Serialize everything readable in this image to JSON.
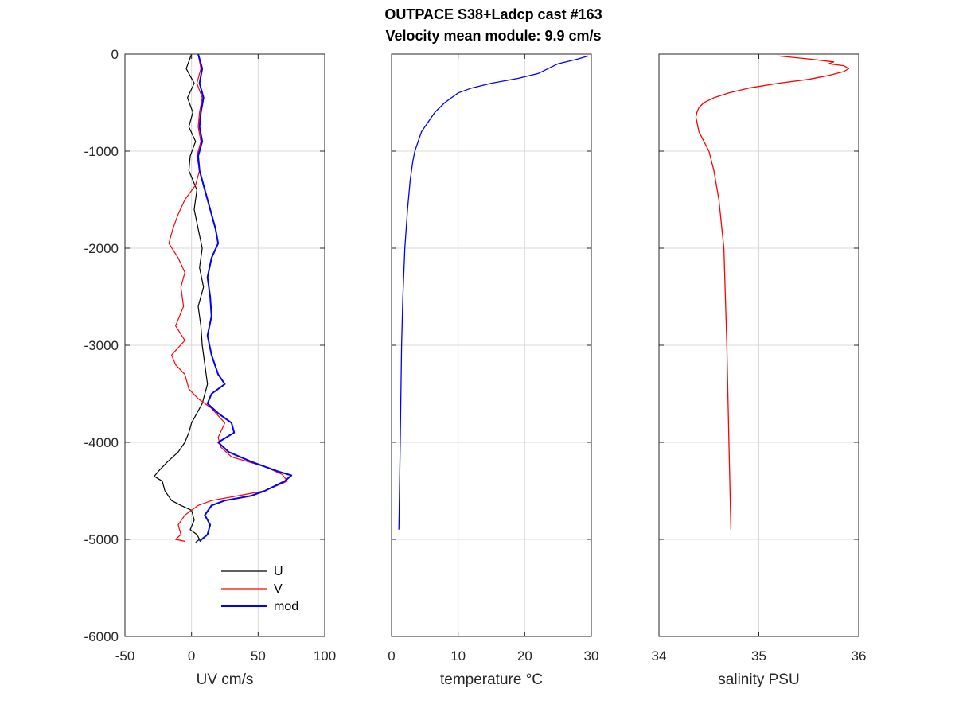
{
  "title_line1": "OUTPACE S38+Ladcp cast #163",
  "title_line2": "Velocity mean module:  9.9 cm/s",
  "colors": {
    "U": "#000000",
    "V": "#ff0000",
    "mod": "#0000ff",
    "temperature": "#0000ff",
    "salinity": "#ff0000",
    "grid": "#d9d9d9",
    "axis": "#262626"
  },
  "chart_data": [
    {
      "type": "line",
      "xlabel": "UV cm/s",
      "ylabel": "",
      "xlim": [
        -50,
        100
      ],
      "ylim": [
        -6000,
        0
      ],
      "xticks": [
        -50,
        0,
        50,
        100
      ],
      "yticks": [
        -6000,
        -5000,
        -4000,
        -3000,
        -2000,
        -1000,
        0
      ],
      "grid": true,
      "legend": {
        "location": "bottom-right",
        "entries": [
          "U",
          "V",
          "mod"
        ]
      },
      "series": [
        {
          "name": "U",
          "depth": [
            0,
            -150,
            -300,
            -450,
            -600,
            -750,
            -900,
            -1050,
            -1200,
            -1400,
            -1600,
            -1800,
            -2000,
            -2200,
            -2400,
            -2600,
            -2800,
            -3000,
            -3200,
            -3400,
            -3600,
            -3800,
            -3900,
            -4000,
            -4100,
            -4200,
            -4300,
            -4350,
            -4400,
            -4500,
            -4600,
            -4650,
            -4700,
            -4800,
            -4900,
            -4950,
            -5000,
            -5030
          ],
          "values": [
            0,
            -4,
            2,
            -3,
            1,
            -2,
            3,
            -1,
            -2,
            4,
            2,
            5,
            8,
            6,
            9,
            5,
            7,
            8,
            10,
            12,
            8,
            0,
            -2,
            -5,
            -10,
            -18,
            -25,
            -28,
            -22,
            -20,
            -15,
            -8,
            0,
            2,
            -1,
            4,
            6,
            3
          ]
        },
        {
          "name": "V",
          "depth": [
            0,
            -150,
            -300,
            -450,
            -600,
            -750,
            -900,
            -1050,
            -1200,
            -1350,
            -1500,
            -1650,
            -1800,
            -1950,
            -2100,
            -2250,
            -2400,
            -2600,
            -2800,
            -2950,
            -3100,
            -3200,
            -3300,
            -3450,
            -3550,
            -3650,
            -3800,
            -3950,
            -4050,
            -4150,
            -4250,
            -4330,
            -4400,
            -4500,
            -4550,
            -4600,
            -4650,
            -4750,
            -4850,
            -4950,
            -5000,
            -5020
          ],
          "values": [
            5,
            7,
            4,
            8,
            6,
            5,
            7,
            4,
            6,
            3,
            -5,
            -10,
            -14,
            -17,
            -10,
            -5,
            -8,
            -6,
            -12,
            -5,
            -15,
            -12,
            -5,
            -2,
            5,
            15,
            25,
            20,
            22,
            30,
            55,
            68,
            72,
            55,
            35,
            15,
            5,
            -5,
            -10,
            -8,
            -12,
            -5
          ]
        },
        {
          "name": "mod",
          "depth": [
            0,
            -150,
            -300,
            -450,
            -600,
            -750,
            -900,
            -1050,
            -1200,
            -1400,
            -1600,
            -1800,
            -1950,
            -2100,
            -2300,
            -2500,
            -2700,
            -2900,
            -3100,
            -3300,
            -3400,
            -3500,
            -3600,
            -3700,
            -3800,
            -3900,
            -4000,
            -4100,
            -4200,
            -4300,
            -4340,
            -4400,
            -4500,
            -4550,
            -4600,
            -4650,
            -4750,
            -4850,
            -4950,
            -5020
          ],
          "values": [
            5,
            8,
            6,
            9,
            7,
            6,
            8,
            5,
            6,
            10,
            14,
            18,
            20,
            15,
            12,
            14,
            15,
            12,
            15,
            20,
            25,
            15,
            12,
            20,
            30,
            32,
            20,
            28,
            45,
            65,
            75,
            70,
            55,
            45,
            25,
            15,
            10,
            14,
            12,
            6
          ]
        }
      ]
    },
    {
      "type": "line",
      "xlabel": "temperature °C",
      "ylabel": "",
      "xlim": [
        0,
        30
      ],
      "ylim": [
        -6000,
        0
      ],
      "xticks": [
        0,
        10,
        20,
        30
      ],
      "yticks": [
        -6000,
        -5000,
        -4000,
        -3000,
        -2000,
        -1000,
        0
      ],
      "grid": true,
      "series": [
        {
          "name": "",
          "depth": [
            -20,
            -50,
            -100,
            -200,
            -250,
            -300,
            -350,
            -400,
            -450,
            -500,
            -600,
            -700,
            -800,
            -1000,
            -1100,
            -1300,
            -1600,
            -2000,
            -2500,
            -3000,
            -4000,
            -4900
          ],
          "values": [
            29.5,
            28,
            25,
            22,
            19,
            15,
            12,
            10,
            9,
            8,
            6.5,
            5.5,
            4.5,
            3.5,
            3.2,
            2.8,
            2.4,
            2.0,
            1.7,
            1.5,
            1.3,
            1.1
          ]
        }
      ]
    },
    {
      "type": "line",
      "xlabel": "salinity PSU",
      "ylabel": "",
      "xlim": [
        34,
        36
      ],
      "ylim": [
        -6000,
        0
      ],
      "xticks": [
        34,
        35,
        36
      ],
      "yticks": [
        -6000,
        -5000,
        -4000,
        -3000,
        -2000,
        -1000,
        0
      ],
      "grid": true,
      "series": [
        {
          "name": "",
          "depth": [
            -20,
            -50,
            -80,
            -100,
            -120,
            -150,
            -180,
            -220,
            -260,
            -300,
            -350,
            -400,
            -450,
            -500,
            -550,
            -600,
            -650,
            -700,
            -800,
            -900,
            -1000,
            -1200,
            -1500,
            -2000,
            -3000,
            -4000,
            -4900
          ],
          "values": [
            35.2,
            35.5,
            35.75,
            35.7,
            35.85,
            35.9,
            35.85,
            35.7,
            35.5,
            35.2,
            34.9,
            34.7,
            34.55,
            34.45,
            34.4,
            34.38,
            34.37,
            34.38,
            34.4,
            34.45,
            34.5,
            34.55,
            34.6,
            34.65,
            34.68,
            34.7,
            34.72
          ]
        }
      ]
    }
  ]
}
